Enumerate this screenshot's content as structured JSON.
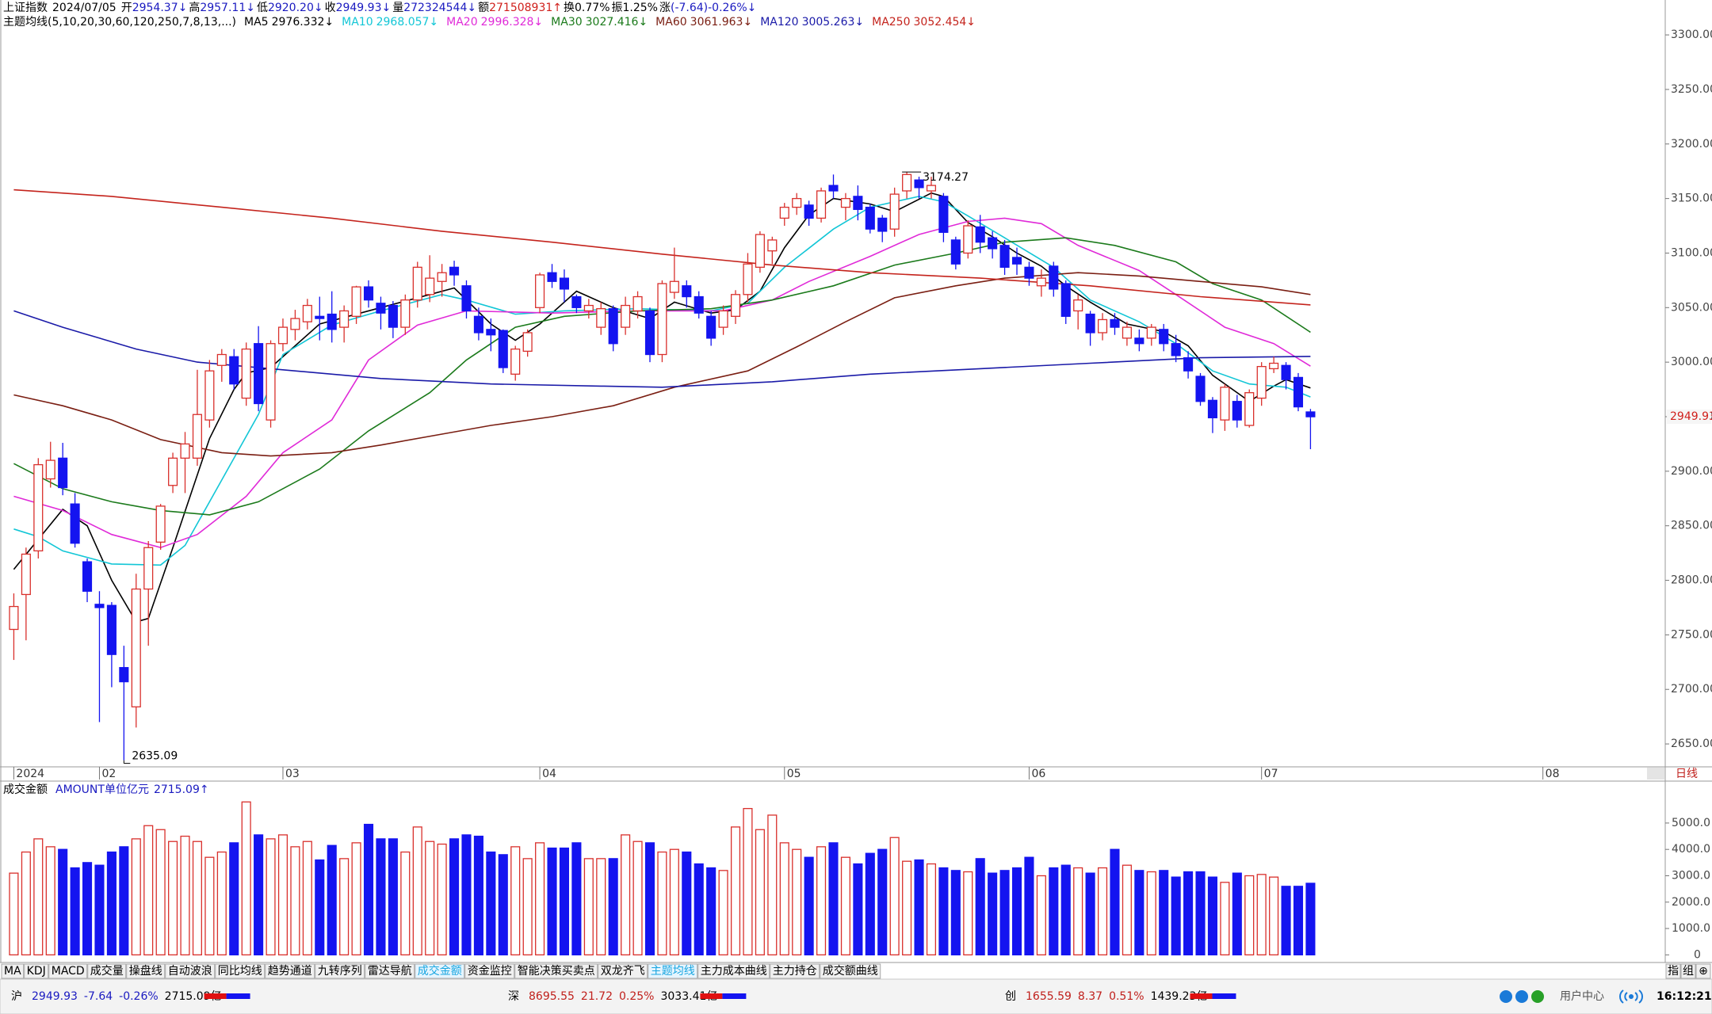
{
  "chart_data": {
    "type": "candlestick",
    "quote": {
      "name": "上证指数",
      "date": "2024/07/05",
      "items": [
        {
          "label": "开",
          "value": "2954.37↓",
          "color": "#1a1ac0"
        },
        {
          "label": "高",
          "value": "2957.11↓",
          "color": "#1a1ac0"
        },
        {
          "label": "低",
          "value": "2920.20↓",
          "color": "#1a1ac0"
        },
        {
          "label": "收",
          "value": "2949.93↓",
          "color": "#1a1ac0"
        },
        {
          "label": "量",
          "value": "272324544↓",
          "color": "#1a1ac0"
        },
        {
          "label": "额",
          "value": "271508931↑",
          "color": "#d0201c"
        },
        {
          "label": "换",
          "value": "0.77%",
          "color": "#000000"
        },
        {
          "label": "振",
          "value": "1.25%",
          "color": "#000000"
        },
        {
          "label": "涨",
          "value": "(-7.64)-0.26%↓",
          "color": "#1a1ac0"
        }
      ]
    },
    "ma_title": "主题均线(5,10,20,30,60,120,250,7,8,13,...)",
    "period": "日线",
    "up_color": "#d9302c",
    "down_color": "#1414f0",
    "xlim": [
      -1,
      135
    ],
    "xticks": [
      {
        "value": 0,
        "label": "2024"
      },
      {
        "value": 7,
        "label": "02"
      },
      {
        "value": 22,
        "label": "03"
      },
      {
        "value": 43,
        "label": "04"
      },
      {
        "value": 63,
        "label": "05"
      },
      {
        "value": 83,
        "label": "06"
      },
      {
        "value": 102,
        "label": "07"
      },
      {
        "value": 125,
        "label": "08"
      }
    ],
    "ylim": [
      2629,
      3332
    ],
    "yticks": [
      {
        "value": 2650,
        "label": "2650.00"
      },
      {
        "value": 2700,
        "label": "2700.00"
      },
      {
        "value": 2750,
        "label": "2750.00"
      },
      {
        "value": 2800,
        "label": "2800.00"
      },
      {
        "value": 2850,
        "label": "2850.00"
      },
      {
        "value": 2900,
        "label": "2900.00"
      },
      {
        "value": 2950,
        "label": "2950.00"
      },
      {
        "value": 3000,
        "label": "3000.00"
      },
      {
        "value": 3050,
        "label": "3050.00"
      },
      {
        "value": 3100,
        "label": "3100.00"
      },
      {
        "value": 3150,
        "label": "3150.00"
      },
      {
        "value": 3200,
        "label": "3200.00"
      },
      {
        "value": 3250,
        "label": "3250.00"
      },
      {
        "value": 3300,
        "label": "3300.00"
      }
    ],
    "grid": false,
    "high_label": "3174.27",
    "low_label": "2635.09",
    "last_price_label": "2949.93",
    "candles": {
      "open": [
        2755,
        2787,
        2827,
        2893,
        2912,
        2870,
        2817,
        2778,
        2777,
        2720,
        2684,
        2792,
        2835,
        2887,
        2912,
        2912,
        2947,
        2997,
        3005,
        2967,
        3017,
        2947,
        3017,
        3030,
        3037,
        3042,
        3044,
        3032,
        3042,
        3069,
        3054,
        3052,
        3032,
        3057,
        3062,
        3074,
        3087,
        3070,
        3042,
        3030,
        3029,
        2989,
        3010,
        3050,
        3082,
        3077,
        3060,
        3047,
        3032,
        3049,
        3032,
        3047,
        3047,
        3007,
        3064,
        3070,
        3060,
        3042,
        3032,
        3042,
        3062,
        3087,
        3102,
        3132,
        3142,
        3144,
        3132,
        3162,
        3142,
        3152,
        3142,
        3132,
        3122,
        3157,
        3167,
        3157,
        3152,
        3112,
        3100,
        3124,
        3114,
        3107,
        3096,
        3087,
        3070,
        3088,
        3072,
        3047,
        3044,
        3027,
        3039,
        3022,
        3022,
        3022,
        3030,
        3017,
        3004,
        2987,
        2965,
        2947,
        2964,
        2942,
        2967,
        2994,
        2997,
        2986,
        2954.37
      ],
      "high": [
        2788,
        2830,
        2912,
        2927,
        2926,
        2880,
        2820,
        2790,
        2780,
        2740,
        2806,
        2836,
        2870,
        2917,
        2936,
        2993,
        3002,
        3012,
        3012,
        3018,
        3033,
        3020,
        3040,
        3048,
        3058,
        3060,
        3065,
        3052,
        3070,
        3075,
        3060,
        3056,
        3062,
        3092,
        3098,
        3090,
        3093,
        3075,
        3050,
        3040,
        3030,
        3015,
        3030,
        3082,
        3090,
        3085,
        3062,
        3058,
        3055,
        3052,
        3060,
        3065,
        3050,
        3075,
        3105,
        3075,
        3065,
        3047,
        3052,
        3066,
        3100,
        3120,
        3115,
        3146,
        3155,
        3148,
        3160,
        3172,
        3155,
        3162,
        3145,
        3135,
        3160,
        3174.27,
        3170,
        3170,
        3155,
        3115,
        3130,
        3135,
        3120,
        3112,
        3105,
        3092,
        3085,
        3092,
        3075,
        3062,
        3047,
        3045,
        3045,
        3037,
        3030,
        3035,
        3035,
        3025,
        3010,
        2990,
        2968,
        2980,
        2970,
        2975,
        3000,
        3005,
        3000,
        2990,
        2957.11
      ],
      "low": [
        2727,
        2745,
        2820,
        2885,
        2878,
        2830,
        2780,
        2670,
        2702,
        2635.09,
        2665,
        2740,
        2828,
        2880,
        2880,
        2905,
        2940,
        2982,
        2975,
        2960,
        2955,
        2940,
        3010,
        3020,
        3030,
        3020,
        3018,
        3018,
        3035,
        3050,
        3030,
        3022,
        3025,
        3050,
        3055,
        3060,
        3070,
        3040,
        3020,
        3010,
        2990,
        2983,
        3005,
        3045,
        3068,
        3055,
        3045,
        3040,
        3025,
        3010,
        3025,
        3040,
        3000,
        3000,
        3058,
        3050,
        3040,
        3015,
        3025,
        3035,
        3055,
        3082,
        3090,
        3125,
        3135,
        3125,
        3128,
        3150,
        3130,
        3130,
        3118,
        3110,
        3115,
        3150,
        3150,
        3150,
        3110,
        3085,
        3095,
        3100,
        3095,
        3080,
        3080,
        3070,
        3060,
        3060,
        3035,
        3030,
        3015,
        3020,
        3025,
        3015,
        3010,
        3015,
        3010,
        3000,
        2985,
        2960,
        2935,
        2937,
        2940,
        2940,
        2960,
        2990,
        2975,
        2955,
        2920.2
      ],
      "close": [
        2776,
        2824,
        2906,
        2910,
        2885,
        2834,
        2790,
        2775,
        2732,
        2707,
        2792,
        2830,
        2868,
        2912,
        2925,
        2952,
        2992,
        3007,
        2980,
        3012,
        2962,
        3017,
        3032,
        3040,
        3052,
        3040,
        3030,
        3047,
        3069,
        3057,
        3045,
        3032,
        3057,
        3087,
        3077,
        3082,
        3080,
        3047,
        3027,
        3025,
        2995,
        3012,
        3027,
        3080,
        3074,
        3067,
        3050,
        3052,
        3049,
        3017,
        3052,
        3060,
        3007,
        3072,
        3074,
        3060,
        3045,
        3022,
        3047,
        3062,
        3090,
        3117,
        3112,
        3142,
        3150,
        3132,
        3157,
        3157,
        3150,
        3140,
        3122,
        3120,
        3154,
        3172,
        3160,
        3162,
        3119,
        3090,
        3125,
        3110,
        3104,
        3087,
        3090,
        3077,
        3077,
        3067,
        3042,
        3057,
        3027,
        3039,
        3032,
        3032,
        3017,
        3032,
        3017,
        3006,
        2992,
        2964,
        2949,
        2977,
        2947,
        2972,
        2996,
        2999,
        2984,
        2959,
        2949.93
      ]
    },
    "series": [
      {
        "name": "MA5",
        "label": "2976.332↓",
        "color": "#000000",
        "x": [
          0,
          4,
          6,
          8,
          10,
          11,
          13,
          16,
          18,
          19,
          21,
          25,
          30,
          34,
          36,
          39,
          41,
          43,
          46,
          49,
          52,
          54,
          57,
          59,
          61,
          63,
          65,
          67,
          70,
          72,
          75,
          76,
          78,
          80,
          82,
          84,
          86,
          88,
          91,
          94,
          96,
          98,
          101,
          103,
          104,
          106
        ],
        "values": [
          2810,
          2865,
          2850,
          2800,
          2762,
          2765,
          2830,
          2930,
          2975,
          2990,
          2995,
          3035,
          3050,
          3062,
          3068,
          3035,
          3020,
          3035,
          3065,
          3050,
          3040,
          3055,
          3045,
          3048,
          3065,
          3105,
          3135,
          3150,
          3145,
          3138,
          3155,
          3152,
          3128,
          3115,
          3100,
          3088,
          3070,
          3055,
          3035,
          3028,
          3015,
          2988,
          2964,
          2978,
          2984,
          2976.332
        ]
      },
      {
        "name": "MA10",
        "label": "2968.057↓",
        "color": "#12c6d6",
        "x": [
          0,
          2,
          4,
          8,
          12,
          14,
          17,
          20,
          22,
          26,
          30,
          35,
          37,
          41,
          45,
          51,
          57,
          60,
          63,
          67,
          70,
          74,
          76,
          78,
          81,
          85,
          88,
          92,
          95,
          98,
          101,
          104,
          106
        ],
        "values": [
          2847,
          2840,
          2827,
          2815,
          2814,
          2832,
          2892,
          2952,
          3007,
          3034,
          3047,
          3062,
          3057,
          3044,
          3047,
          3049,
          3047,
          3054,
          3087,
          3122,
          3142,
          3152,
          3147,
          3134,
          3114,
          3087,
          3057,
          3037,
          3017,
          2992,
          2980,
          2977,
          2968.057
        ]
      },
      {
        "name": "MA20",
        "label": "2996.328↓",
        "color": "#e02ad8",
        "x": [
          0,
          4,
          8,
          12,
          15,
          19,
          22,
          26,
          29,
          33,
          37,
          44,
          51,
          58,
          62,
          65,
          70,
          74,
          78,
          81,
          84,
          87,
          92,
          95,
          99,
          103,
          106
        ],
        "values": [
          2877,
          2864,
          2842,
          2830,
          2842,
          2877,
          2917,
          2947,
          3002,
          3034,
          3047,
          3045,
          3047,
          3047,
          3057,
          3074,
          3097,
          3117,
          3129,
          3132,
          3127,
          3107,
          3084,
          3062,
          3032,
          3017,
          2996.328
        ]
      },
      {
        "name": "MA30",
        "label": "3027.416↓",
        "color": "#1b7a1b",
        "x": [
          0,
          4,
          8,
          12,
          16,
          20,
          25,
          29,
          34,
          37,
          41,
          45,
          51,
          57,
          62,
          67,
          72,
          77,
          81,
          86,
          90,
          95,
          98,
          102,
          106
        ],
        "values": [
          2907,
          2884,
          2872,
          2864,
          2860,
          2872,
          2902,
          2937,
          2972,
          3002,
          3032,
          3042,
          3047,
          3049,
          3057,
          3070,
          3089,
          3100,
          3110,
          3114,
          3107,
          3092,
          3072,
          3057,
          3027.416
        ]
      },
      {
        "name": "MA60",
        "label": "3061.963↓",
        "color": "#7a1e12",
        "x": [
          0,
          4,
          8,
          12,
          17,
          21,
          26,
          30,
          35,
          39,
          44,
          49,
          54,
          60,
          64,
          68,
          72,
          77,
          81,
          87,
          92,
          97,
          102,
          106
        ],
        "values": [
          2970,
          2960,
          2947,
          2929,
          2917,
          2914,
          2917,
          2924,
          2934,
          2942,
          2950,
          2960,
          2977,
          2992,
          3014,
          3037,
          3059,
          3070,
          3077,
          3082,
          3079,
          3074,
          3069,
          3061.963
        ]
      },
      {
        "name": "MA120",
        "label": "3005.263↓",
        "color": "#1a1aa8",
        "x": [
          0,
          4,
          10,
          15,
          21,
          30,
          39,
          48,
          53,
          62,
          70,
          79,
          88,
          97,
          106
        ],
        "values": [
          3047,
          3032,
          3012,
          3000,
          2994,
          2985,
          2980,
          2978,
          2977,
          2982,
          2989,
          2994,
          2999,
          3004,
          3005.263
        ]
      },
      {
        "name": "MA250",
        "label": "3052.454↓",
        "color": "#c4231c",
        "x": [
          0,
          8,
          17,
          26,
          35,
          44,
          53,
          62,
          70,
          79,
          88,
          97,
          106
        ],
        "values": [
          3158,
          3152,
          3142,
          3132,
          3120,
          3110,
          3099,
          3089,
          3082,
          3077,
          3070,
          3060,
          3052.454
        ]
      }
    ],
    "volume": {
      "title": "成交金额",
      "unit": "AMOUNT单位亿元",
      "last": "2715.09↑",
      "ylim": [
        -290,
        6530
      ],
      "yticks": [
        {
          "value": 5000,
          "label": "5000.0"
        },
        {
          "value": 4000,
          "label": "4000.0"
        },
        {
          "value": 3000,
          "label": "3000.0"
        },
        {
          "value": 2000,
          "label": "2000.0"
        },
        {
          "value": 1000,
          "label": "1000.0"
        },
        0
      ],
      "values": [
        3100,
        3900,
        4400,
        4100,
        4000,
        3300,
        3500,
        3400,
        3900,
        4100,
        4400,
        4900,
        4750,
        4300,
        4500,
        4300,
        3700,
        3900,
        4250,
        5800,
        4550,
        4400,
        4550,
        4100,
        4300,
        3600,
        4150,
        3650,
        4250,
        4950,
        4400,
        4400,
        3900,
        4850,
        4300,
        4200,
        4400,
        4550,
        4500,
        3900,
        3800,
        4100,
        3650,
        4250,
        4050,
        4050,
        4250,
        3650,
        3650,
        3650,
        4550,
        4300,
        4250,
        3900,
        4000,
        3900,
        3450,
        3300,
        3200,
        4850,
        5550,
        4750,
        5300,
        4250,
        4000,
        3700,
        4100,
        4250,
        3700,
        3450,
        3850,
        4000,
        4450,
        3550,
        3600,
        3450,
        3300,
        3200,
        3150,
        3650,
        3100,
        3200,
        3300,
        3700,
        3000,
        3300,
        3400,
        3300,
        3100,
        3300,
        4000,
        3400,
        3200,
        3150,
        3200,
        2950,
        3150,
        3150,
        2950,
        2750,
        3100,
        3000,
        3050,
        2950,
        2600,
        2600,
        2715.09
      ]
    }
  },
  "tabs": [
    {
      "label": "MA",
      "active": false
    },
    {
      "label": "KDJ",
      "active": false
    },
    {
      "label": "MACD",
      "active": false
    },
    {
      "label": "成交量",
      "active": false
    },
    {
      "label": "操盘线",
      "active": false
    },
    {
      "label": "自动波浪",
      "active": false
    },
    {
      "label": "同比均线",
      "active": false
    },
    {
      "label": "趋势通道",
      "active": false
    },
    {
      "label": "九转序列",
      "active": false
    },
    {
      "label": "雷达导航",
      "active": false
    },
    {
      "label": "成交金额",
      "active": true
    },
    {
      "label": "资金监控",
      "active": false
    },
    {
      "label": "智能决策买卖点",
      "active": false
    },
    {
      "label": "双龙齐飞",
      "active": false
    },
    {
      "label": "主题均线",
      "active": true
    },
    {
      "label": "主力成本曲线",
      "active": false
    },
    {
      "label": "主力持仓",
      "active": false
    },
    {
      "label": "成交额曲线",
      "active": false
    }
  ],
  "tab_tools": [
    "指",
    "组",
    "⊕"
  ],
  "status": {
    "markets": [
      {
        "name": "沪",
        "price": "2949.93",
        "change": "-7.64",
        "pct": "-0.26%",
        "amount": "2715.09亿",
        "color": "#1a1ac0"
      },
      {
        "name": "深",
        "price": "8695.55",
        "change": "21.72",
        "pct": "0.25%",
        "amount": "3033.41亿",
        "color": "#c0201c"
      },
      {
        "name": "创",
        "price": "1655.59",
        "change": "8.37",
        "pct": "0.51%",
        "amount": "1439.23亿",
        "color": "#c0201c"
      }
    ],
    "user": "用户中心",
    "time": "16:12:21"
  }
}
